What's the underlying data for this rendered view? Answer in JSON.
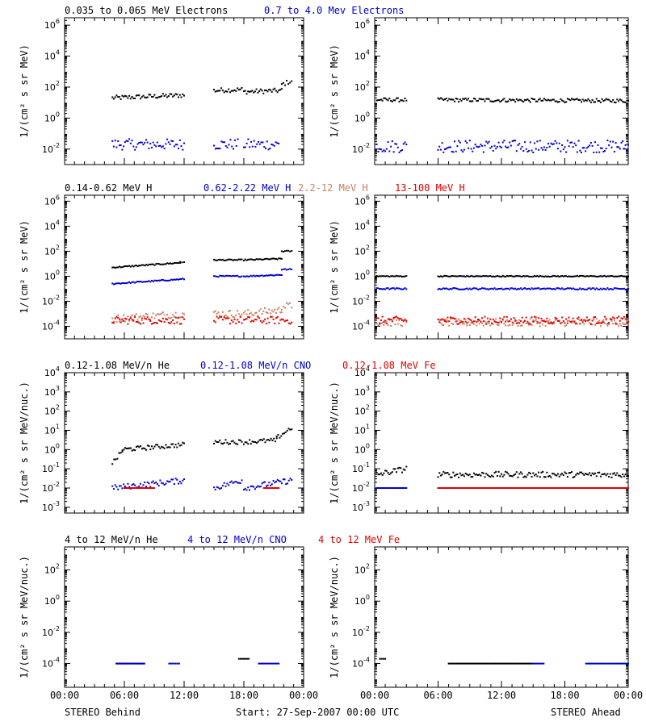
{
  "colors": {
    "black": "#000000",
    "blue": "#0000d0",
    "tan": "#c88060",
    "red": "#e00000"
  },
  "footer": {
    "left": "STEREO Behind",
    "center": "Start: 27-Sep-2007 00:00 UTC",
    "right": "STEREO Ahead"
  },
  "x_ticks": [
    "00:00",
    "06:00",
    "12:00",
    "18:00",
    "00:00"
  ],
  "rows": [
    {
      "legend": [
        {
          "text": "0.035 to 0.065 MeV Electrons",
          "color": "#000000"
        },
        {
          "text": "0.7 to 4.0 Mev Electrons",
          "color": "#0000d0"
        }
      ],
      "ylabel": "1/(cm² s sr MeV)",
      "ytick_exps": [
        "-2",
        "0",
        "2",
        "4",
        "6"
      ]
    },
    {
      "legend": [
        {
          "text": "0.14-0.62 MeV H",
          "color": "#000000"
        },
        {
          "text": "0.62-2.22 MeV H",
          "color": "#0000d0"
        },
        {
          "text": "2.2-12 MeV H",
          "color": "#c88060"
        },
        {
          "text": "13-100 MeV H",
          "color": "#e00000"
        }
      ],
      "ylabel": "1/(cm² s sr MeV)",
      "ytick_exps": [
        "-4",
        "-2",
        "0",
        "2",
        "4",
        "6"
      ]
    },
    {
      "legend": [
        {
          "text": "0.12-1.08 MeV/n He",
          "color": "#000000"
        },
        {
          "text": "0.12-1.08 MeV/n CNO",
          "color": "#0000d0"
        },
        {
          "text": "0.12-1.08 MeV Fe",
          "color": "#e00000"
        }
      ],
      "ylabel": "1/(cm² s sr MeV/nuc.)",
      "ytick_exps": [
        "-3",
        "-2",
        "-1",
        "0",
        "1",
        "2",
        "3",
        "4"
      ]
    },
    {
      "legend": [
        {
          "text": "4 to 12 MeV/n He",
          "color": "#000000"
        },
        {
          "text": "4 to 12 MeV/n CNO",
          "color": "#0000d0"
        },
        {
          "text": "4 to 12 MeV Fe",
          "color": "#e00000"
        }
      ],
      "ylabel": "1/(cm² s sr MeV/nuc.)",
      "ytick_exps": [
        "-4",
        "-2",
        "0",
        "2"
      ]
    }
  ],
  "chart_data": [
    {
      "type": "scatter",
      "panel": "STEREO Behind",
      "ylog": true,
      "ylim": [
        0.001,
        3000000
      ],
      "xlim": [
        0,
        24
      ],
      "series": [
        {
          "name": "0.035 to 0.065 MeV Electrons",
          "color": "#000000",
          "segments": [
            [
              4.8,
              12.0,
              20,
              30
            ],
            [
              15.0,
              17.8,
              60,
              70
            ],
            [
              18.0,
              21.8,
              50,
              60
            ],
            [
              21.8,
              22.8,
              150,
              250
            ]
          ],
          "scatter": 0.15
        },
        {
          "name": "0.7 to 4.0 Mev Electrons",
          "color": "#0000d0",
          "segments": [
            [
              4.8,
              12.0,
              0.02,
              0.02
            ],
            [
              15.0,
              17.4,
              0.02,
              0.02
            ],
            [
              18.0,
              21.5,
              0.02,
              0.02
            ]
          ],
          "scatter": 0.35
        }
      ]
    },
    {
      "type": "scatter",
      "panel": "STEREO Ahead",
      "ylog": true,
      "ylim": [
        0.001,
        3000000
      ],
      "xlim": [
        0,
        24
      ],
      "series": [
        {
          "name": "0.035 to 0.065 MeV Electrons",
          "color": "#000000",
          "segments": [
            [
              0.2,
              3.0,
              15,
              15
            ],
            [
              6.0,
              24.0,
              15,
              13
            ]
          ],
          "scatter": 0.12
        },
        {
          "name": "0.7 to 4.0 Mev Electrons",
          "color": "#0000d0",
          "segments": [
            [
              0.2,
              3.0,
              0.015,
              0.015
            ],
            [
              6.0,
              24.0,
              0.015,
              0.015
            ]
          ],
          "scatter": 0.4
        }
      ]
    },
    {
      "type": "scatter",
      "panel": "STEREO Behind",
      "ylog": true,
      "ylim": [
        1e-05,
        3000000
      ],
      "xlim": [
        0,
        24
      ],
      "series": [
        {
          "name": "0.14-0.62 MeV H",
          "color": "#000000",
          "segments": [
            [
              4.8,
              11.6,
              5,
              12
            ],
            [
              11.6,
              12.0,
              15,
              12
            ],
            [
              15.0,
              17.8,
              20,
              20
            ],
            [
              18.0,
              21.8,
              20,
              25
            ],
            [
              21.8,
              22.8,
              100,
              100
            ]
          ],
          "scatter": 0.05
        },
        {
          "name": "0.62-2.22 MeV H",
          "color": "#0000d0",
          "segments": [
            [
              4.8,
              12.0,
              0.25,
              0.6
            ],
            [
              15.0,
              17.8,
              1,
              1
            ],
            [
              18.0,
              21.8,
              1,
              1.3
            ],
            [
              21.8,
              22.8,
              3.5,
              3.5
            ]
          ],
          "scatter": 0.05
        },
        {
          "name": "2.2-12 MeV H",
          "color": "#c88060",
          "segments": [
            [
              4.8,
              12.0,
              0.0004,
              0.001
            ],
            [
              15.0,
              17.8,
              0.001,
              0.001
            ],
            [
              18.0,
              21.8,
              0.001,
              0.002
            ],
            [
              21.8,
              22.8,
              0.004,
              0.004
            ]
          ],
          "scatter": 0.3
        },
        {
          "name": "13-100 MeV H",
          "color": "#e00000",
          "segments": [
            [
              4.8,
              12.0,
              0.0003,
              0.0003
            ],
            [
              15.0,
              17.8,
              0.0003,
              0.0003
            ],
            [
              18.0,
              22.8,
              0.0003,
              0.0003
            ]
          ],
          "scatter": 0.3
        }
      ]
    },
    {
      "type": "scatter",
      "panel": "STEREO Ahead",
      "ylog": true,
      "ylim": [
        1e-05,
        3000000
      ],
      "xlim": [
        0,
        24
      ],
      "series": [
        {
          "name": "0.14-0.62 MeV H",
          "color": "#000000",
          "segments": [
            [
              0.2,
              3.0,
              1,
              1
            ],
            [
              6.0,
              24.0,
              1,
              1
            ]
          ],
          "scatter": 0.04
        },
        {
          "name": "0.62-2.22 MeV H",
          "color": "#0000d0",
          "segments": [
            [
              0.2,
              3.0,
              0.1,
              0.1
            ],
            [
              6.0,
              24.0,
              0.1,
              0.1
            ]
          ],
          "scatter": 0.06
        },
        {
          "name": "2.2-12 MeV H",
          "color": "#c88060",
          "segments": [
            [
              0.2,
              3.0,
              0.0002,
              0.0002
            ],
            [
              6.0,
              24.0,
              0.0002,
              0.0002
            ]
          ],
          "scatter": 0.3
        },
        {
          "name": "13-100 MeV H",
          "color": "#e00000",
          "segments": [
            [
              0.2,
              3.0,
              0.0003,
              0.0003
            ],
            [
              6.0,
              24.0,
              0.0003,
              0.0003
            ]
          ],
          "scatter": 0.3
        }
      ]
    },
    {
      "type": "scatter",
      "panel": "STEREO Behind",
      "ylog": true,
      "ylim": [
        0.0005,
        10000
      ],
      "xlim": [
        0,
        24
      ],
      "series": [
        {
          "name": "0.12-1.08 MeV/n He",
          "color": "#000000",
          "segments": [
            [
              4.8,
              5.8,
              0.2,
              0.8
            ],
            [
              5.8,
              12.0,
              1,
              1.8
            ],
            [
              15.0,
              17.8,
              2.5,
              2.5
            ],
            [
              18.0,
              21.3,
              2.5,
              3
            ],
            [
              21.3,
              22.8,
              4,
              14
            ]
          ],
          "scatter": 0.12
        },
        {
          "name": "0.12-1.08 MeV/n CNO",
          "color": "#0000d0",
          "segments": [
            [
              4.8,
              12.0,
              0.01,
              0.025
            ],
            [
              15.0,
              17.8,
              0.01,
              0.025
            ],
            [
              18.0,
              22.8,
              0.01,
              0.025
            ]
          ],
          "scatter": 0.15
        },
        {
          "name": "0.12-1.08 MeV Fe",
          "color": "#e00000",
          "segments": [
            [
              6.0,
              9.0,
              0.01,
              0.01
            ],
            [
              20.0,
              21.5,
              0.01,
              0.01
            ]
          ],
          "scatter": 0.0
        }
      ]
    },
    {
      "type": "scatter",
      "panel": "STEREO Ahead",
      "ylog": true,
      "ylim": [
        0.0005,
        10000
      ],
      "xlim": [
        0,
        24
      ],
      "series": [
        {
          "name": "0.12-1.08 MeV/n He",
          "color": "#000000",
          "segments": [
            [
              0.2,
              3.0,
              0.05,
              0.1
            ],
            [
              6.0,
              24.0,
              0.05,
              0.05
            ]
          ],
          "scatter": 0.15
        },
        {
          "name": "0.12-1.08 MeV/n CNO",
          "color": "#0000d0",
          "segments": [
            [
              0.2,
              3.0,
              0.01,
              0.01
            ],
            [
              6.0,
              24.0,
              0.01,
              0.01
            ]
          ],
          "scatter": 0.0
        },
        {
          "name": "0.12-1.08 MeV Fe",
          "color": "#e00000",
          "segments": [
            [
              6.0,
              24.0,
              0.01,
              0.01
            ]
          ],
          "scatter": 0.0
        }
      ]
    },
    {
      "type": "scatter",
      "panel": "STEREO Behind",
      "ylog": true,
      "ylim": [
        3e-06,
        3000
      ],
      "xlim": [
        0,
        24
      ],
      "series": [
        {
          "name": "4 to 12 MeV/n He",
          "color": "#000000",
          "segments": [
            [
              5.2,
              8.0,
              0.0001,
              0.0001
            ],
            [
              17.5,
              18.5,
              0.0002,
              0.0002
            ]
          ],
          "scatter": 0.0
        },
        {
          "name": "4 to 12 MeV/n CNO",
          "color": "#0000d0",
          "segments": [
            [
              5.2,
              8.0,
              0.0001,
              0.0001
            ],
            [
              10.5,
              11.5,
              0.0001,
              0.0001
            ],
            [
              19.5,
              21.5,
              0.0001,
              0.0001
            ]
          ],
          "scatter": 0.0
        }
      ]
    },
    {
      "type": "scatter",
      "panel": "STEREO Ahead",
      "ylog": true,
      "ylim": [
        3e-06,
        3000
      ],
      "xlim": [
        0,
        24
      ],
      "series": [
        {
          "name": "4 to 12 MeV/n He",
          "color": "#000000",
          "segments": [
            [
              0.5,
              1.0,
              0.0002,
              0.0002
            ],
            [
              7.0,
              15.0,
              0.0001,
              0.0001
            ]
          ],
          "scatter": 0.0
        },
        {
          "name": "4 to 12 MeV/n CNO",
          "color": "#0000d0",
          "segments": [
            [
              15.0,
              16.0,
              0.0001,
              0.0001
            ],
            [
              20.0,
              24.0,
              0.0001,
              0.0001
            ]
          ],
          "scatter": 0.0
        }
      ]
    }
  ]
}
